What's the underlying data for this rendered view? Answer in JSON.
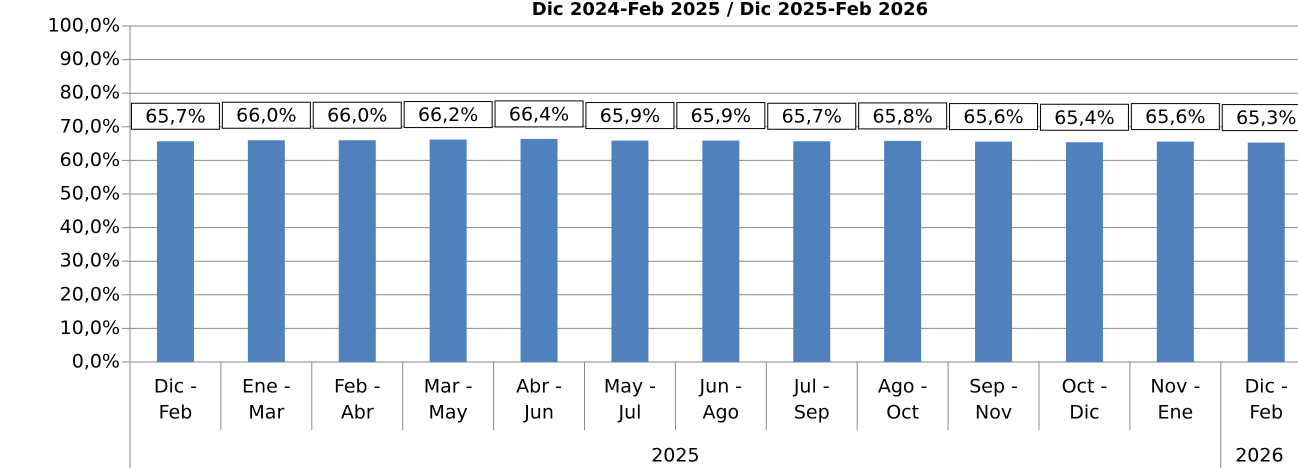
{
  "chart_data": {
    "type": "bar",
    "title": "Dic 2024-Feb 2025 / Dic 2025-Feb 2026",
    "category_groups": [
      {
        "label": "2025",
        "members": [
          [
            "Dic -",
            "Feb"
          ],
          [
            "Ene -",
            "Mar"
          ],
          [
            "Feb -",
            "Abr"
          ],
          [
            "Mar -",
            "May"
          ],
          [
            "Abr -",
            "Jun"
          ],
          [
            "May -",
            "Jul"
          ],
          [
            "Jun -",
            "Ago"
          ],
          [
            "Jul -",
            "Sep"
          ],
          [
            "Ago -",
            "Oct"
          ],
          [
            "Sep -",
            "Nov"
          ],
          [
            "Oct -",
            "Dic"
          ],
          [
            "Nov -",
            "Ene"
          ]
        ]
      },
      {
        "label": "2026",
        "members": [
          [
            "Dic -",
            "Feb"
          ]
        ]
      }
    ],
    "values": [
      65.7,
      66.0,
      66.0,
      66.2,
      66.4,
      65.9,
      65.9,
      65.7,
      65.8,
      65.6,
      65.4,
      65.6,
      65.3
    ],
    "value_labels": [
      "65,7%",
      "66,0%",
      "66,0%",
      "66,2%",
      "66,4%",
      "65,9%",
      "65,9%",
      "65,7%",
      "65,8%",
      "65,6%",
      "65,4%",
      "65,6%",
      "65,3%"
    ],
    "color": "#4f81bd",
    "ylim": [
      0,
      100
    ],
    "yticks": [
      {
        "value": 0,
        "label": "0,0%"
      },
      {
        "value": 10,
        "label": "10,0%"
      },
      {
        "value": 20,
        "label": "20,0%"
      },
      {
        "value": 30,
        "label": "30,0%"
      },
      {
        "value": 40,
        "label": "40,0%"
      },
      {
        "value": 50,
        "label": "50,0%"
      },
      {
        "value": 60,
        "label": "60,0%"
      },
      {
        "value": 70,
        "label": "70,0%"
      },
      {
        "value": 80,
        "label": "80,0%"
      },
      {
        "value": 90,
        "label": "90,0%"
      },
      {
        "value": 100,
        "label": "100,0%"
      }
    ],
    "grid": true
  }
}
